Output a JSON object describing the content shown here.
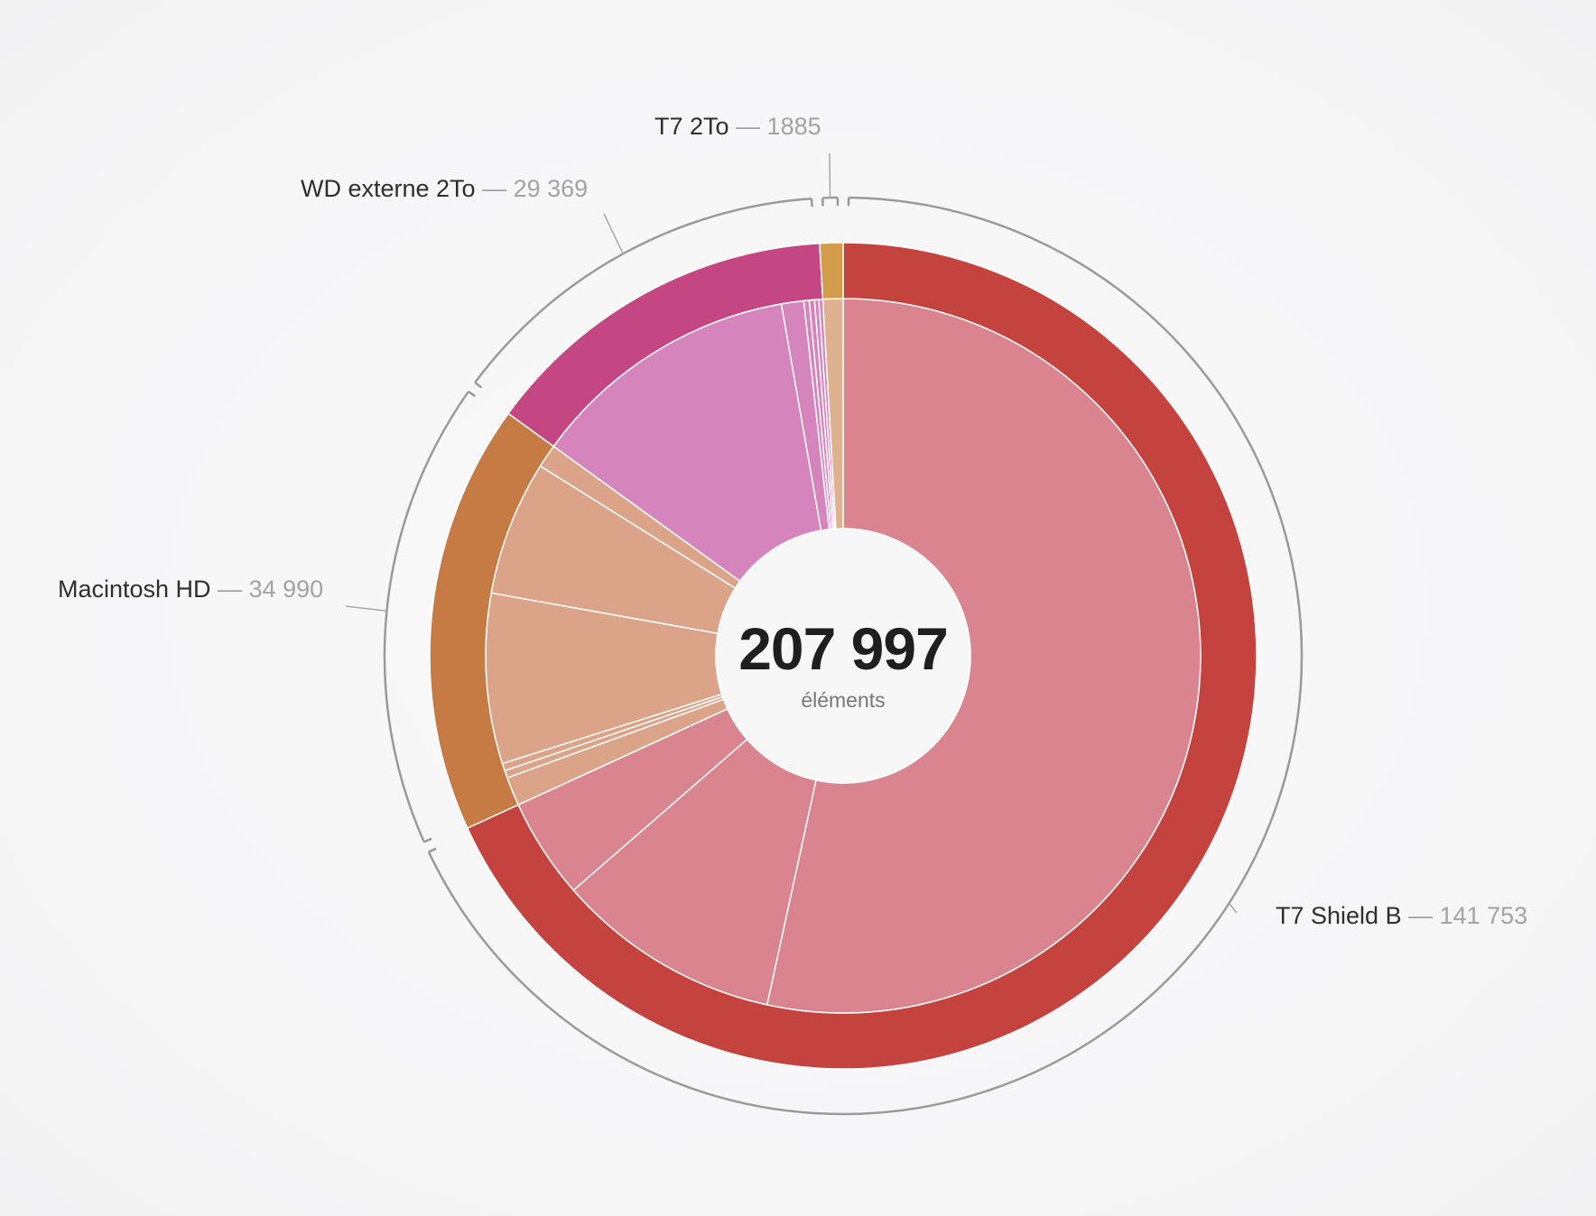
{
  "chart_data": {
    "type": "pie",
    "subtype": "sunburst",
    "center": {
      "total": "207 997",
      "unit_label": "éléments"
    },
    "drives": [
      {
        "name": "T7 Shield B",
        "count": 141753,
        "count_label": "141 753",
        "color": "#c5433e",
        "sub_color": "#d9848f",
        "children": [
          111100,
          21200,
          9453
        ]
      },
      {
        "name": "Macintosh HD",
        "count": 34990,
        "count_label": "34 990",
        "color": "#c67a44",
        "sub_color": "#dba488",
        "children": [
          2700,
          700,
          700,
          16000,
          12690,
          2200
        ]
      },
      {
        "name": "WD externe 2To",
        "count": 29369,
        "count_label": "29 369",
        "color": "#c44783",
        "sub_color": "#d685bc",
        "children": [
          25500,
          2100,
          500,
          500,
          400,
          369
        ]
      },
      {
        "name": "T7 2To",
        "count": 1885,
        "count_label": "1885",
        "color": "#d39c4a",
        "sub_color": "#deb28e",
        "children": [
          1885
        ]
      }
    ]
  }
}
